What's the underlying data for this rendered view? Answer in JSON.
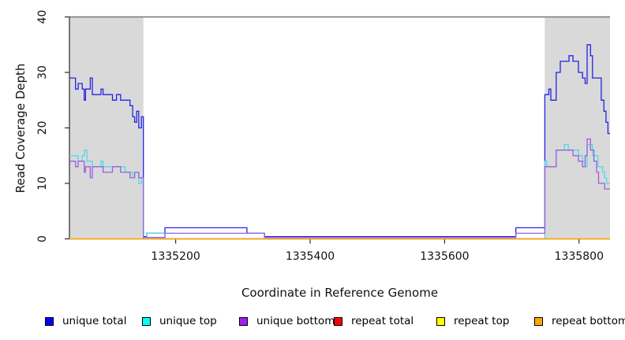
{
  "chart_data": {
    "type": "line",
    "style": "step",
    "title": "",
    "xlabel": "Coordinate in Reference Genome",
    "ylabel": "Read Coverage Depth",
    "xlim": [
      1335042,
      1335846
    ],
    "ylim": [
      0,
      40
    ],
    "x_ticks": [
      1335200,
      1335400,
      1335600,
      1335800
    ],
    "y_ticks": [
      0,
      10,
      20,
      30,
      40
    ],
    "grid": false,
    "legend_position": "bottom",
    "shaded_regions": [
      {
        "name": "left-flank",
        "x0": 1335042,
        "x1": 1335152,
        "color": "#d9d9d9"
      },
      {
        "name": "right-flank",
        "x0": 1335749,
        "x1": 1335846,
        "color": "#d9d9d9"
      }
    ],
    "series": [
      {
        "name": "unique total",
        "legend_color": "#0000ff",
        "line_color": "#2323e6",
        "points": [
          [
            1335042,
            29
          ],
          [
            1335051,
            27
          ],
          [
            1335055,
            28
          ],
          [
            1335061,
            27
          ],
          [
            1335064,
            25
          ],
          [
            1335066,
            27
          ],
          [
            1335073,
            29
          ],
          [
            1335076,
            26
          ],
          [
            1335089,
            27
          ],
          [
            1335092,
            26
          ],
          [
            1335106,
            25
          ],
          [
            1335112,
            26
          ],
          [
            1335118,
            25
          ],
          [
            1335132,
            24
          ],
          [
            1335136,
            22
          ],
          [
            1335139,
            21
          ],
          [
            1335142,
            23
          ],
          [
            1335145,
            20
          ],
          [
            1335149,
            22
          ],
          [
            1335152,
            0.4
          ],
          [
            1335157,
            1
          ],
          [
            1335184,
            2
          ],
          [
            1335306,
            1
          ],
          [
            1335332,
            0.4
          ],
          [
            1335706,
            2
          ],
          [
            1335749,
            26
          ],
          [
            1335755,
            27
          ],
          [
            1335758,
            25
          ],
          [
            1335766,
            30
          ],
          [
            1335772,
            32
          ],
          [
            1335785,
            33
          ],
          [
            1335791,
            32
          ],
          [
            1335799,
            30
          ],
          [
            1335805,
            29
          ],
          [
            1335809,
            28
          ],
          [
            1335812,
            35
          ],
          [
            1335817,
            33
          ],
          [
            1335820,
            29
          ],
          [
            1335833,
            25
          ],
          [
            1335837,
            23
          ],
          [
            1335840,
            21
          ],
          [
            1335843,
            19
          ],
          [
            1335846,
            19
          ]
        ]
      },
      {
        "name": "unique top",
        "legend_color": "#00ffff",
        "line_color": "#4fdbe8",
        "points": [
          [
            1335042,
            15
          ],
          [
            1335055,
            14
          ],
          [
            1335061,
            15
          ],
          [
            1335064,
            16
          ],
          [
            1335068,
            14
          ],
          [
            1335076,
            13
          ],
          [
            1335089,
            14
          ],
          [
            1335092,
            13
          ],
          [
            1335125,
            12
          ],
          [
            1335136,
            11
          ],
          [
            1335139,
            12
          ],
          [
            1335145,
            10
          ],
          [
            1335149,
            11
          ],
          [
            1335152,
            0
          ],
          [
            1335157,
            1
          ],
          [
            1335184,
            0
          ],
          [
            1335749,
            14
          ],
          [
            1335752,
            13
          ],
          [
            1335766,
            16
          ],
          [
            1335778,
            17
          ],
          [
            1335784,
            16
          ],
          [
            1335799,
            15
          ],
          [
            1335805,
            14
          ],
          [
            1335809,
            13
          ],
          [
            1335812,
            17
          ],
          [
            1335820,
            15
          ],
          [
            1335828,
            13
          ],
          [
            1335835,
            12
          ],
          [
            1335838,
            11
          ],
          [
            1335841,
            10
          ],
          [
            1335846,
            10
          ]
        ]
      },
      {
        "name": "unique bottom",
        "legend_color": "#a020f0",
        "line_color": "#9a5fe0",
        "points": [
          [
            1335042,
            14
          ],
          [
            1335051,
            13
          ],
          [
            1335055,
            14
          ],
          [
            1335064,
            12
          ],
          [
            1335066,
            13
          ],
          [
            1335073,
            11
          ],
          [
            1335076,
            13
          ],
          [
            1335092,
            12
          ],
          [
            1335106,
            13
          ],
          [
            1335118,
            12
          ],
          [
            1335132,
            11
          ],
          [
            1335139,
            12
          ],
          [
            1335145,
            11
          ],
          [
            1335152,
            0.25
          ],
          [
            1335184,
            1
          ],
          [
            1335332,
            0.25
          ],
          [
            1335706,
            1
          ],
          [
            1335749,
            13
          ],
          [
            1335766,
            16
          ],
          [
            1335791,
            15
          ],
          [
            1335799,
            14
          ],
          [
            1335805,
            13
          ],
          [
            1335809,
            15
          ],
          [
            1335812,
            18
          ],
          [
            1335817,
            16
          ],
          [
            1335822,
            14
          ],
          [
            1335826,
            12
          ],
          [
            1335829,
            10
          ],
          [
            1335838,
            9
          ],
          [
            1335846,
            9
          ]
        ]
      },
      {
        "name": "repeat total",
        "legend_color": "#ff0000",
        "line_color": "#ff0000",
        "points": [
          [
            1335042,
            0
          ],
          [
            1335846,
            0
          ]
        ]
      },
      {
        "name": "repeat top",
        "legend_color": "#ffff00",
        "line_color": "#ffff00",
        "points": [
          [
            1335042,
            0
          ],
          [
            1335846,
            0
          ]
        ]
      },
      {
        "name": "repeat bottom",
        "legend_color": "#ffa500",
        "line_color": "#ffa500",
        "points": [
          [
            1335042,
            0
          ],
          [
            1335846,
            0
          ]
        ]
      }
    ]
  }
}
